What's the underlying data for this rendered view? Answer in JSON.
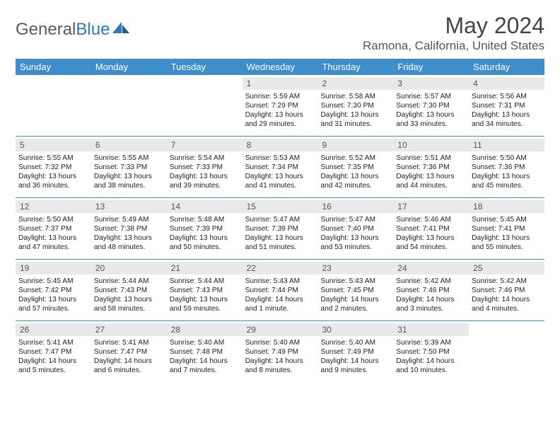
{
  "brand": {
    "part1": "General",
    "part2": "Blue"
  },
  "title": "May 2024",
  "location": "Ramona, California, United States",
  "colors": {
    "header_bg": "#3f8ecb",
    "daynum_bg": "#e9e9e9",
    "rule": "#3f8ecb"
  },
  "day_headers": [
    "Sunday",
    "Monday",
    "Tuesday",
    "Wednesday",
    "Thursday",
    "Friday",
    "Saturday"
  ],
  "weeks": [
    [
      {
        "n": "",
        "sr": "",
        "ss": "",
        "dl": ""
      },
      {
        "n": "",
        "sr": "",
        "ss": "",
        "dl": ""
      },
      {
        "n": "",
        "sr": "",
        "ss": "",
        "dl": ""
      },
      {
        "n": "1",
        "sr": "5:59 AM",
        "ss": "7:29 PM",
        "dl": "13 hours and 29 minutes."
      },
      {
        "n": "2",
        "sr": "5:58 AM",
        "ss": "7:30 PM",
        "dl": "13 hours and 31 minutes."
      },
      {
        "n": "3",
        "sr": "5:57 AM",
        "ss": "7:30 PM",
        "dl": "13 hours and 33 minutes."
      },
      {
        "n": "4",
        "sr": "5:56 AM",
        "ss": "7:31 PM",
        "dl": "13 hours and 34 minutes."
      }
    ],
    [
      {
        "n": "5",
        "sr": "5:55 AM",
        "ss": "7:32 PM",
        "dl": "13 hours and 36 minutes."
      },
      {
        "n": "6",
        "sr": "5:55 AM",
        "ss": "7:33 PM",
        "dl": "13 hours and 38 minutes."
      },
      {
        "n": "7",
        "sr": "5:54 AM",
        "ss": "7:33 PM",
        "dl": "13 hours and 39 minutes."
      },
      {
        "n": "8",
        "sr": "5:53 AM",
        "ss": "7:34 PM",
        "dl": "13 hours and 41 minutes."
      },
      {
        "n": "9",
        "sr": "5:52 AM",
        "ss": "7:35 PM",
        "dl": "13 hours and 42 minutes."
      },
      {
        "n": "10",
        "sr": "5:51 AM",
        "ss": "7:36 PM",
        "dl": "13 hours and 44 minutes."
      },
      {
        "n": "11",
        "sr": "5:50 AM",
        "ss": "7:36 PM",
        "dl": "13 hours and 45 minutes."
      }
    ],
    [
      {
        "n": "12",
        "sr": "5:50 AM",
        "ss": "7:37 PM",
        "dl": "13 hours and 47 minutes."
      },
      {
        "n": "13",
        "sr": "5:49 AM",
        "ss": "7:38 PM",
        "dl": "13 hours and 48 minutes."
      },
      {
        "n": "14",
        "sr": "5:48 AM",
        "ss": "7:39 PM",
        "dl": "13 hours and 50 minutes."
      },
      {
        "n": "15",
        "sr": "5:47 AM",
        "ss": "7:39 PM",
        "dl": "13 hours and 51 minutes."
      },
      {
        "n": "16",
        "sr": "5:47 AM",
        "ss": "7:40 PM",
        "dl": "13 hours and 53 minutes."
      },
      {
        "n": "17",
        "sr": "5:46 AM",
        "ss": "7:41 PM",
        "dl": "13 hours and 54 minutes."
      },
      {
        "n": "18",
        "sr": "5:45 AM",
        "ss": "7:41 PM",
        "dl": "13 hours and 55 minutes."
      }
    ],
    [
      {
        "n": "19",
        "sr": "5:45 AM",
        "ss": "7:42 PM",
        "dl": "13 hours and 57 minutes."
      },
      {
        "n": "20",
        "sr": "5:44 AM",
        "ss": "7:43 PM",
        "dl": "13 hours and 58 minutes."
      },
      {
        "n": "21",
        "sr": "5:44 AM",
        "ss": "7:43 PM",
        "dl": "13 hours and 59 minutes."
      },
      {
        "n": "22",
        "sr": "5:43 AM",
        "ss": "7:44 PM",
        "dl": "14 hours and 1 minute."
      },
      {
        "n": "23",
        "sr": "5:43 AM",
        "ss": "7:45 PM",
        "dl": "14 hours and 2 minutes."
      },
      {
        "n": "24",
        "sr": "5:42 AM",
        "ss": "7:46 PM",
        "dl": "14 hours and 3 minutes."
      },
      {
        "n": "25",
        "sr": "5:42 AM",
        "ss": "7:46 PM",
        "dl": "14 hours and 4 minutes."
      }
    ],
    [
      {
        "n": "26",
        "sr": "5:41 AM",
        "ss": "7:47 PM",
        "dl": "14 hours and 5 minutes."
      },
      {
        "n": "27",
        "sr": "5:41 AM",
        "ss": "7:47 PM",
        "dl": "14 hours and 6 minutes."
      },
      {
        "n": "28",
        "sr": "5:40 AM",
        "ss": "7:48 PM",
        "dl": "14 hours and 7 minutes."
      },
      {
        "n": "29",
        "sr": "5:40 AM",
        "ss": "7:49 PM",
        "dl": "14 hours and 8 minutes."
      },
      {
        "n": "30",
        "sr": "5:40 AM",
        "ss": "7:49 PM",
        "dl": "14 hours and 9 minutes."
      },
      {
        "n": "31",
        "sr": "5:39 AM",
        "ss": "7:50 PM",
        "dl": "14 hours and 10 minutes."
      },
      {
        "n": "",
        "sr": "",
        "ss": "",
        "dl": ""
      }
    ]
  ],
  "labels": {
    "sunrise": "Sunrise:",
    "sunset": "Sunset:",
    "daylight": "Daylight:"
  }
}
